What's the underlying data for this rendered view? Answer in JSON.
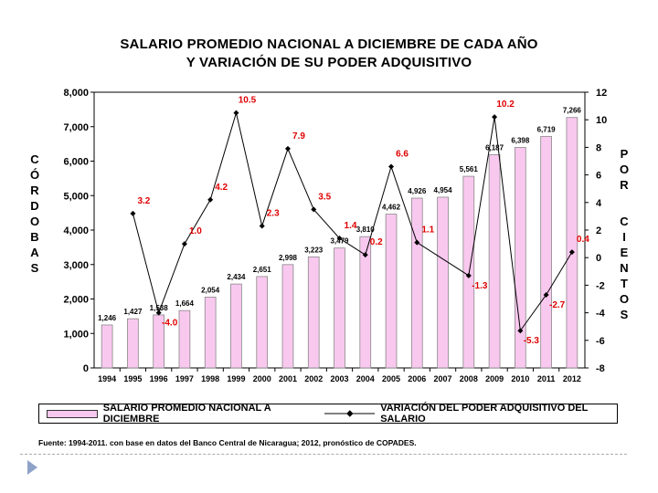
{
  "chart_data": {
    "type": "bar+line",
    "title_line1": "SALARIO PROMEDIO NACIONAL A DICIEMBRE DE CADA AÑO",
    "title_line2": "Y VARIACIÓN DE SU PODER ADQUISITIVO",
    "left_axis_label": [
      "C",
      "Ó",
      "R",
      "D",
      "O",
      "B",
      "A",
      "S"
    ],
    "right_axis_label_1": [
      "P",
      "O",
      "R"
    ],
    "right_axis_label_2": [
      "C",
      "I",
      "E",
      "N",
      "T",
      "O",
      "S"
    ],
    "categories": [
      "1994",
      "1995",
      "1996",
      "1997",
      "1998",
      "1999",
      "2000",
      "2001",
      "2002",
      "2003",
      "2004",
      "2005",
      "2006",
      "2007",
      "2008",
      "2009",
      "2010",
      "2011",
      "2012"
    ],
    "bar_series": {
      "name": "SALARIO PROMEDIO NACIONAL A DICIEMBRE",
      "values": [
        1246,
        1427,
        1538,
        1664,
        2054,
        2434,
        2651,
        2998,
        3223,
        3479,
        3810,
        4462,
        4926,
        4954,
        5561,
        6187,
        6398,
        6719,
        7266
      ],
      "labels": [
        "1,246",
        "1,427",
        "1,538",
        "1,664",
        "2,054",
        "2,434",
        "2,651",
        "2,998",
        "3,223",
        "3,479",
        "3,810",
        "4,462",
        "4,926",
        "4,954",
        "5,561",
        "6,187",
        "6,398",
        "6,719",
        "7,266"
      ],
      "color": "#f9c8ef"
    },
    "line_series": {
      "name": "VARIACIÓN DEL PODER ADQUISITIVO DEL SALARIO",
      "values": [
        3.2,
        -4.0,
        1.0,
        4.2,
        10.5,
        2.3,
        7.9,
        3.5,
        1.4,
        0.2,
        6.6,
        1.1,
        -1.3,
        10.2,
        -5.3,
        -2.7,
        0.4
      ],
      "labels": [
        "3.2",
        "-4.0",
        "1.0",
        "4.2",
        "10.5",
        "2.3",
        "7.9",
        "3.5",
        "1.4",
        "0.2",
        "6.6",
        "1.1",
        "-1.3",
        "10.2",
        "-5.3",
        "-2.7",
        "0.4"
      ],
      "years": [
        "1995",
        "1996",
        "1997",
        "1998",
        "1999",
        "2000",
        "2001",
        "2002",
        "2003",
        "2004",
        "2005",
        "2006",
        "2008",
        "2009",
        "2010",
        "2011",
        "2012"
      ],
      "label_color": "#e00000"
    },
    "left_axis": {
      "min": 0,
      "max": 8000,
      "step": 1000,
      "tick_labels": [
        "0",
        "1,000",
        "2,000",
        "3,000",
        "4,000",
        "5,000",
        "6,000",
        "7,000",
        "8,000"
      ]
    },
    "right_axis": {
      "min": -8,
      "max": 12,
      "step": 2,
      "tick_labels": [
        "-8",
        "-6",
        "-4",
        "-2",
        "0",
        "2",
        "4",
        "6",
        "8",
        "10",
        "12"
      ]
    }
  },
  "legend": {
    "bar_label": "SALARIO PROMEDIO NACIONAL A DICIEMBRE",
    "line_label": "VARIACIÓN DEL PODER ADQUISITIVO DEL SALARIO"
  },
  "source": "Fuente: 1994-2011.  con base en datos del Banco Central  de Nicaragua;  2012, pronóstico  de COPADES."
}
